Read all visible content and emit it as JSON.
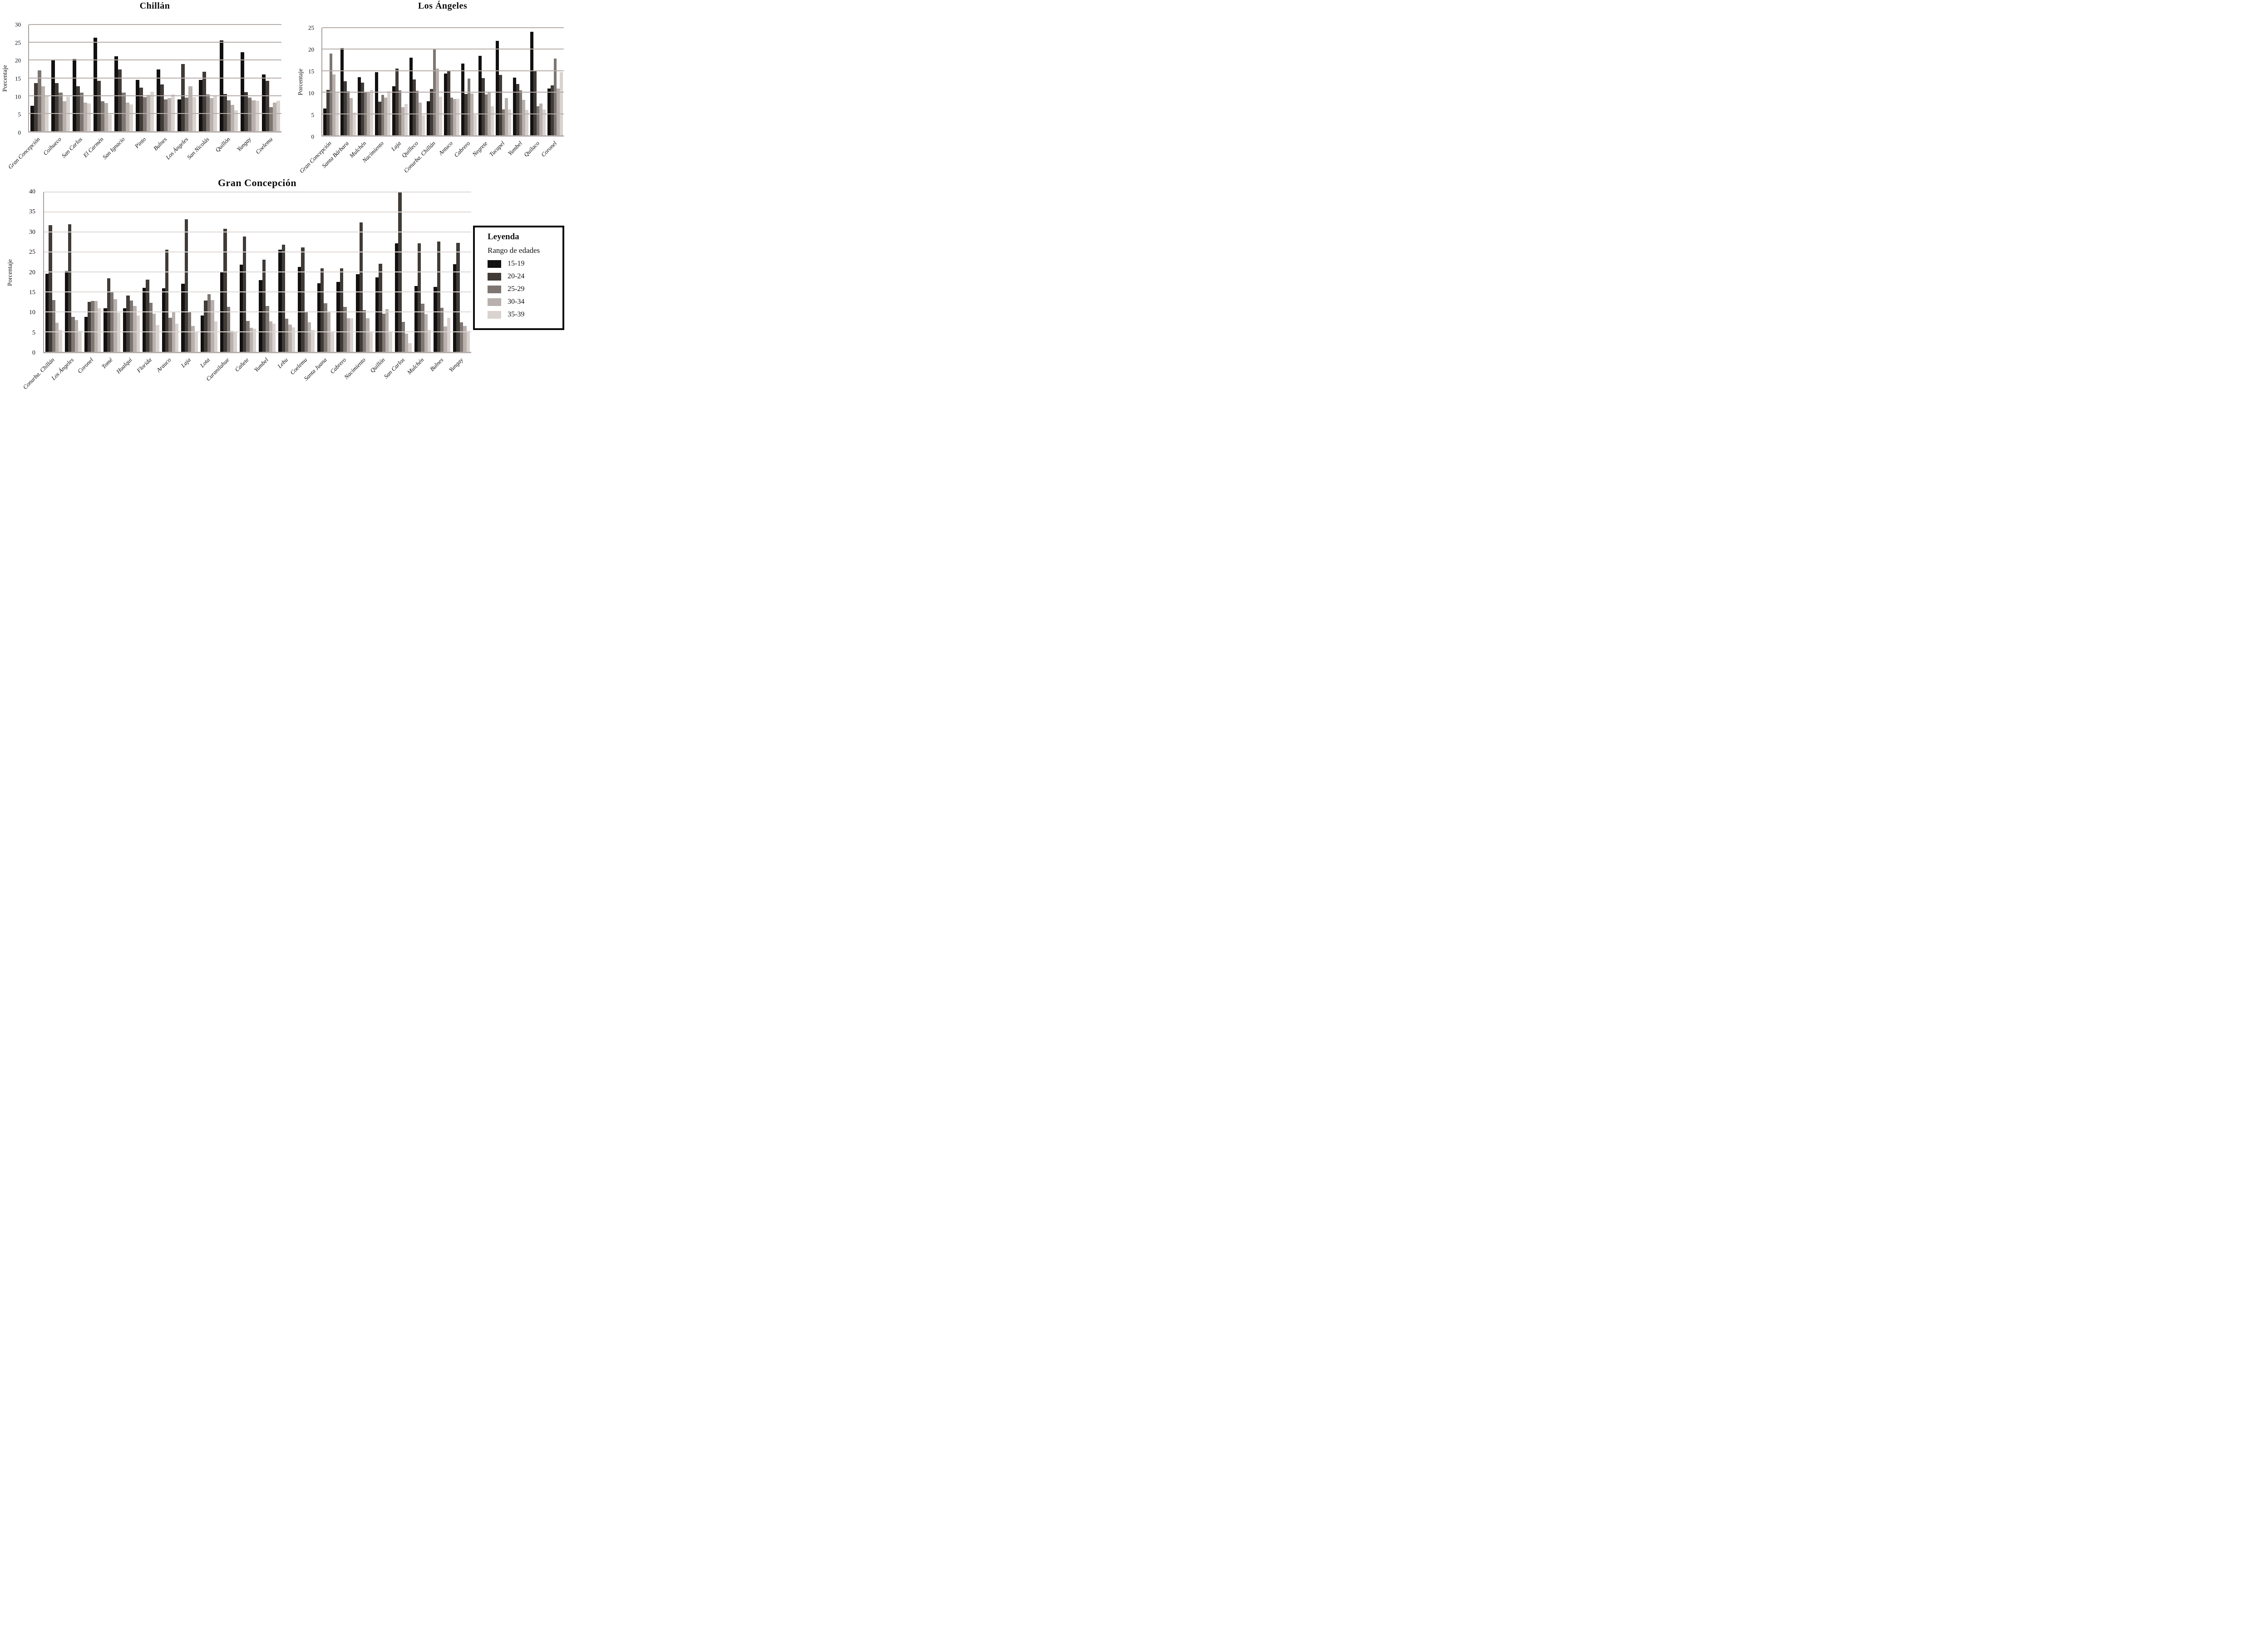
{
  "legend": {
    "title": "Leyenda",
    "subtitle": "Rango de edades",
    "position": "right-middle",
    "items": [
      {
        "label": "15-19",
        "color": "#131011"
      },
      {
        "label": "20-24",
        "color": "#403b37"
      },
      {
        "label": "25-29",
        "color": "#7d7672"
      },
      {
        "label": "30-34",
        "color": "#b8b0ac"
      },
      {
        "label": "35-39",
        "color": "#d9d2cf"
      }
    ]
  },
  "chart_data": [
    {
      "type": "bar",
      "title": "Chillán",
      "ylabel": "Porcentaje",
      "xlabel": "",
      "ylim": [
        0,
        30
      ],
      "ytick": 5,
      "grid": true,
      "grid_color": "#b5ada9",
      "categories": [
        "Gran Concepción",
        "Coihueco",
        "San Carlos",
        "El Carmén",
        "San Ignacio",
        "Pinto",
        "Bulnes",
        "Los Ángeles",
        "San Nicolás",
        "Quillón",
        "Yungay",
        "Coelemu"
      ],
      "series": [
        {
          "name": "15-19",
          "values": [
            7.2,
            20.2,
            20.3,
            26.3,
            21.1,
            14.4,
            17.4,
            9.0,
            14.4,
            25.5,
            22.2,
            16.0
          ]
        },
        {
          "name": "20-24",
          "values": [
            13.5,
            13.5,
            12.7,
            14.2,
            17.4,
            12.2,
            13.1,
            18.9,
            16.7,
            10.5,
            11.0,
            14.2
          ]
        },
        {
          "name": "25-29",
          "values": [
            17.1,
            10.9,
            10.9,
            8.4,
            10.9,
            9.6,
            8.9,
            9.4,
            10.3,
            8.7,
            9.4,
            6.8
          ]
        },
        {
          "name": "30-34",
          "values": [
            12.6,
            8.4,
            8.1,
            7.9,
            8.1,
            10.2,
            9.3,
            12.7,
            9.3,
            7.4,
            8.7,
            8.0
          ]
        },
        {
          "name": "35-39",
          "values": [
            9.9,
            9.7,
            7.8,
            4.7,
            7.5,
            11.1,
            10.4,
            9.6,
            10.0,
            5.9,
            8.6,
            8.6
          ]
        }
      ]
    },
    {
      "type": "bar",
      "title": "Los Ángeles",
      "ylabel": "Porcentaje",
      "xlabel": "",
      "ylim": [
        0,
        25
      ],
      "ytick": 5,
      "grid": true,
      "grid_color": "#b5ada9",
      "categories": [
        "Gran Concepción",
        "Santa Bárbara",
        "Mulchén",
        "Nacimiento",
        "Laja",
        "Quilleco",
        "Conurba. Chillán",
        "Antuco",
        "Cabrero",
        "Negrete",
        "Tucapel",
        "Yumbel",
        "Quilaco",
        "Coronel"
      ],
      "series": [
        {
          "name": "15-19",
          "values": [
            6.2,
            20.3,
            13.5,
            14.7,
            11.4,
            18.0,
            7.9,
            14.3,
            16.7,
            18.5,
            21.9,
            13.4,
            24.0,
            10.9
          ]
        },
        {
          "name": "20-24",
          "values": [
            10.6,
            12.6,
            12.2,
            7.8,
            15.5,
            13.0,
            10.8,
            15.1,
            9.6,
            13.3,
            14.0,
            11.9,
            15.0,
            11.6
          ]
        },
        {
          "name": "25-29",
          "values": [
            19.0,
            10.2,
            9.9,
            9.4,
            10.4,
            10.3,
            19.9,
            8.8,
            13.2,
            9.5,
            6.0,
            10.4,
            6.8,
            17.8
          ]
        },
        {
          "name": "30-34",
          "values": [
            14.1,
            8.7,
            10.1,
            8.8,
            6.5,
            7.6,
            15.5,
            8.4,
            9.7,
            10.0,
            8.7,
            8.2,
            7.4,
            10.9
          ]
        },
        {
          "name": "35-39",
          "values": [
            10.1,
            5.3,
            10.5,
            10.2,
            7.3,
            4.6,
            9.0,
            8.4,
            4.8,
            6.7,
            6.0,
            5.9,
            6.0,
            14.7
          ]
        }
      ]
    },
    {
      "type": "bar",
      "title": "Gran Concepción",
      "ylabel": "Porcentaje",
      "xlabel": "",
      "ylim": [
        0,
        40
      ],
      "ytick": 5,
      "grid": true,
      "grid_color": "#ded8d4",
      "categories": [
        "Conurba. Chillán",
        "Los Ángeles",
        "Coronel",
        "Tomé",
        "Hualqui",
        "Florida",
        "Arauco",
        "Laja",
        "Lota",
        "Curanilahue",
        "Cañete",
        "Yumbel",
        "Lebu",
        "Coelemu",
        "Santa Juana",
        "Cabrero",
        "Nacimiento",
        "Quillón",
        "San Carlos",
        "Mulchén",
        "Bulnes",
        "Yungay"
      ],
      "series": [
        {
          "name": "15-19",
          "values": [
            19.6,
            20.2,
            8.8,
            10.9,
            10.9,
            16.0,
            15.9,
            17.1,
            9.1,
            20.1,
            21.8,
            18.0,
            25.6,
            21.3,
            17.2,
            17.5,
            19.4,
            18.6,
            27.2,
            16.5,
            16.3,
            21.9
          ]
        },
        {
          "name": "20-24",
          "values": [
            31.7,
            31.9,
            12.5,
            18.4,
            14.1,
            18.1,
            25.6,
            33.2,
            12.8,
            30.8,
            28.9,
            23.1,
            26.8,
            26.1,
            20.9,
            20.9,
            32.4,
            22.1,
            40.0,
            27.2,
            27.6,
            27.3
          ]
        },
        {
          "name": "25-29",
          "values": [
            13.0,
            8.8,
            12.7,
            14.9,
            12.8,
            12.3,
            8.5,
            10.0,
            14.4,
            11.3,
            7.7,
            11.5,
            8.3,
            9.9,
            12.2,
            11.3,
            10.4,
            9.5,
            7.5,
            12.0,
            11.0,
            7.4
          ]
        },
        {
          "name": "30-34",
          "values": [
            7.3,
            8.0,
            12.7,
            13.2,
            11.5,
            9.6,
            10.1,
            6.5,
            12.9,
            5.2,
            6.0,
            7.6,
            6.8,
            7.4,
            9.9,
            8.4,
            8.4,
            10.7,
            4.5,
            9.4,
            6.4,
            6.5
          ]
        },
        {
          "name": "35-39",
          "values": [
            5.4,
            5.2,
            10.9,
            9.8,
            9.1,
            6.7,
            7.0,
            4.9,
            7.6,
            5.0,
            5.8,
            7.1,
            6.1,
            5.5,
            5.1,
            8.4,
            4.9,
            5.1,
            2.2,
            5.5,
            8.5,
            5.2
          ]
        }
      ]
    }
  ]
}
